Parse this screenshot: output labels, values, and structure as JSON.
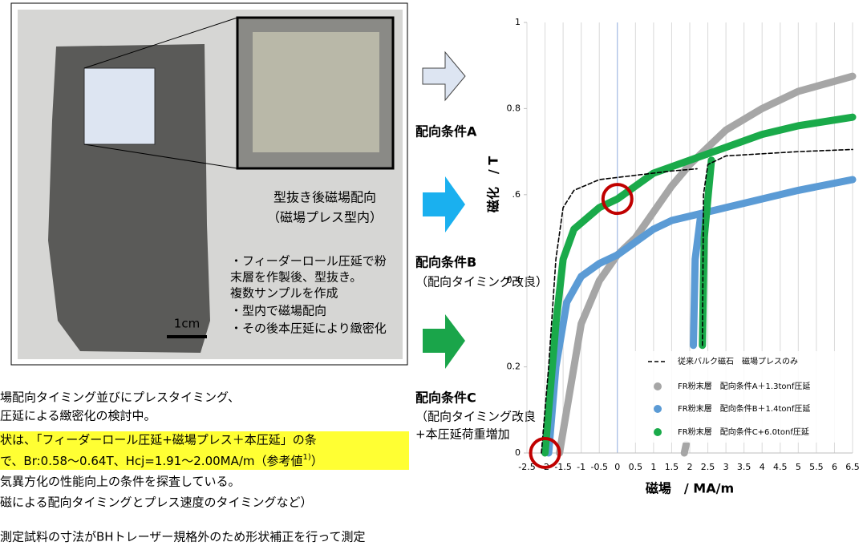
{
  "slide": {
    "photo": {
      "caption": [
        "型抜き後磁場配向",
        "（磁場プレス型内）"
      ],
      "notes": [
        "・フィーダーロール圧延で粉",
        "末層を作製後、型抜き。",
        "複数サンプルを作成",
        "・型内で磁場配向",
        "・その後本圧延により緻密化"
      ],
      "scale": "1cm"
    },
    "arrows": [
      {
        "label": "配向条件A",
        "sub": []
      },
      {
        "label": "配向条件B",
        "sub": [
          "（配向タイミング改良）"
        ]
      },
      {
        "label": "配向条件C",
        "sub": [
          "（配向タイミング改良",
          "+本圧延荷重増加"
        ]
      }
    ],
    "body": [
      "場配向タイミング並びにプレスタイミング、",
      "圧延による緻密化の検討中。",
      "状は、「フィーダーロール圧延+磁場プレス＋本圧延」の条"
    ],
    "highlight": {
      "text": "で、Br:0.58～0.64T、Hcj=1.91～2.00MA/m（参考値",
      "sup": "1)",
      "end": "）"
    },
    "body2": [
      "気異方化の性能向上の条件を探査している。",
      "磁による配向タイミングとプレス速度のタイミングなど）"
    ],
    "footnote": "測定試料の寸法がBHトレーザー規格外のため形状補正を行って測定"
  },
  "chart_data": {
    "type": "line",
    "x_label": "磁場　/ MA/m",
    "y_label": "磁化　/ T",
    "xlim": [
      -2.5,
      6.5
    ],
    "xticks": [
      -2.5,
      -2,
      -1.5,
      -1,
      -0.5,
      0,
      0.5,
      1,
      1.5,
      2,
      2.5,
      3,
      3.5,
      4,
      4.5,
      5,
      5.5,
      6,
      6.5
    ],
    "ylim": [
      0,
      1
    ],
    "yticks": [
      0,
      0.2,
      0.4,
      {
        "value": 0.6,
        "label": ".6"
      },
      0.8,
      1
    ],
    "grid": "x",
    "series": [
      {
        "name": "従来バルク磁石　磁場プレスのみ",
        "color": "#000000",
        "dashed": true,
        "x": [
          -2.1,
          -1.9,
          -1.7,
          -1.5,
          -1.2,
          -0.5,
          0.5,
          1.5,
          2.2,
          null,
          2.35,
          2.38,
          2.5,
          3,
          4,
          5,
          6.5
        ],
        "values": [
          0,
          0.2,
          0.45,
          0.57,
          0.61,
          0.635,
          0.645,
          0.655,
          0.66,
          null,
          0.25,
          0.6,
          0.67,
          0.69,
          0.695,
          0.7,
          0.705
        ]
      },
      {
        "name": "FR粉末層　配向条件A＋1.3tonf圧延",
        "color": "#a6a6a6",
        "x": [
          -1.6,
          -1.2,
          -1,
          -0.5,
          0,
          0.5,
          1,
          1.5,
          2,
          3,
          4,
          5,
          6.5,
          null,
          1.85,
          1.9
        ],
        "values": [
          0,
          0.2,
          0.3,
          0.4,
          0.46,
          0.5,
          0.56,
          0.62,
          0.67,
          0.75,
          0.8,
          0.84,
          0.875,
          null,
          0,
          0.02
        ]
      },
      {
        "name": "FR粉末層　配向条件B＋1.4tonf圧延",
        "color": "#5b9bd5",
        "x": [
          -1.9,
          -1.7,
          -1.4,
          -1,
          -0.5,
          0,
          0.5,
          1,
          1.5,
          2,
          3,
          4,
          5,
          6.5,
          null,
          2.1,
          2.15,
          2.3
        ],
        "values": [
          0,
          0.2,
          0.35,
          0.41,
          0.44,
          0.46,
          0.49,
          0.52,
          0.54,
          0.55,
          0.57,
          0.59,
          0.61,
          0.635,
          null,
          0.25,
          0.45,
          0.55
        ]
      },
      {
        "name": "FR粉末層　配向条件C+6.0tonf圧延",
        "color": "#1aaa4a",
        "x": [
          -2,
          -1.7,
          -1.5,
          -1.2,
          -0.5,
          0,
          0.5,
          1,
          2,
          3,
          4,
          5,
          6.5,
          null,
          2.35,
          2.4,
          2.6
        ],
        "values": [
          0,
          0.3,
          0.45,
          0.52,
          0.57,
          0.59,
          0.62,
          0.65,
          0.68,
          0.71,
          0.74,
          0.76,
          0.78,
          null,
          0.25,
          0.5,
          0.68
        ]
      }
    ]
  }
}
